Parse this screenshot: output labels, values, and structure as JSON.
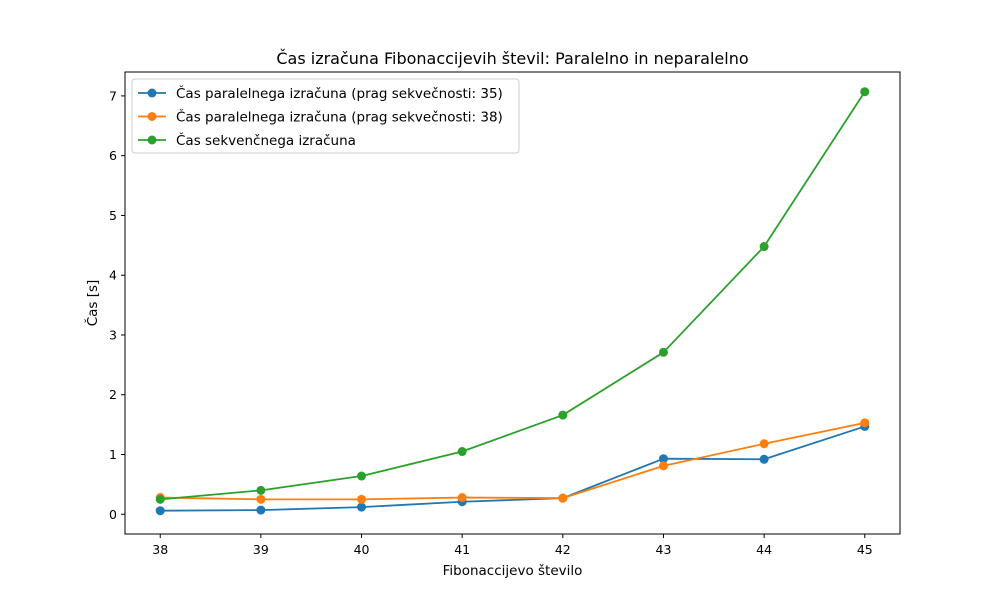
{
  "chart_data": {
    "type": "line",
    "title": "Čas izračuna Fibonaccijevih števil: Paralelno in neparalelno",
    "xlabel": "Fibonaccijevo število",
    "ylabel": "Čas [s]",
    "x": [
      38,
      39,
      40,
      41,
      42,
      43,
      44,
      45
    ],
    "x_ticks": [
      "38",
      "39",
      "40",
      "41",
      "42",
      "43",
      "44",
      "45"
    ],
    "y_ticks": [
      "0",
      "1",
      "2",
      "3",
      "4",
      "5",
      "6",
      "7"
    ],
    "xlim": [
      37.65,
      45.35
    ],
    "ylim": [
      -0.33,
      7.4
    ],
    "grid": false,
    "legend_position": "top-left",
    "series": [
      {
        "name": "Čas paralelnega izračuna (prag sekvečnosti: 35)",
        "color": "#1f77b4",
        "values": [
          0.06,
          0.07,
          0.12,
          0.21,
          0.27,
          0.93,
          0.92,
          1.47
        ]
      },
      {
        "name": "Čas paralelnega izračuna (prag sekvečnosti: 38)",
        "color": "#ff7f0e",
        "values": [
          0.28,
          0.25,
          0.25,
          0.28,
          0.27,
          0.81,
          1.18,
          1.53
        ]
      },
      {
        "name": "Čas sekvenčnega izračuna",
        "color": "#2ca02c",
        "values": [
          0.25,
          0.4,
          0.64,
          1.05,
          1.66,
          2.71,
          4.48,
          7.07
        ]
      }
    ]
  }
}
